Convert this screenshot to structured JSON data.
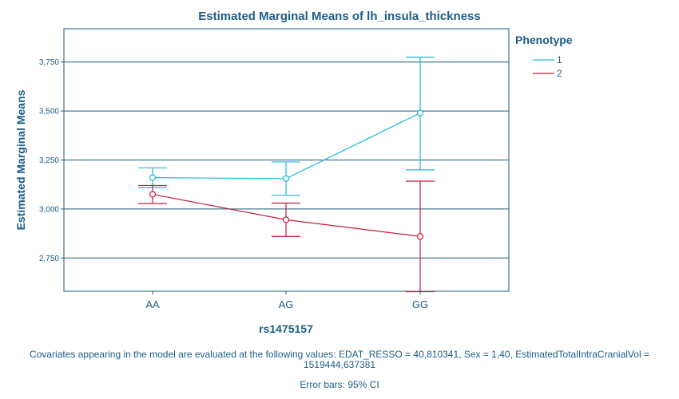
{
  "chart_data": {
    "type": "line",
    "title": "Estimated Marginal Means of lh_insula_thickness",
    "xlabel": "rs1475157",
    "ylabel": "Estimated Marginal Means",
    "categories": [
      "AA",
      "AG",
      "GG"
    ],
    "ylim": [
      2.58,
      3.92
    ],
    "yticks": [
      2.75,
      3.0,
      3.25,
      3.5,
      3.75
    ],
    "ytick_labels": [
      "2,750",
      "3,000",
      "3,250",
      "3,500",
      "3,750"
    ],
    "grid": "horizontal",
    "legend": {
      "title": "Phenotype",
      "placement": "right"
    },
    "series": [
      {
        "name": "1",
        "color": "#1fb8d6",
        "values": [
          3.16,
          3.155,
          3.49
        ],
        "ci_low": [
          3.11,
          3.07,
          3.2
        ],
        "ci_high": [
          3.21,
          3.24,
          3.775
        ]
      },
      {
        "name": "2",
        "color": "#c41e3a",
        "values": [
          3.075,
          2.945,
          2.86
        ],
        "ci_low": [
          3.028,
          2.86,
          2.578
        ],
        "ci_high": [
          3.12,
          3.03,
          3.142
        ]
      }
    ]
  },
  "footnote_covariates": "Covariates appearing in the model are evaluated at the following values: EDAT_RESSO = 40,810341, Sex = 1,40, EstimatedTotalIntraCranialVol =",
  "footnote_covariates_cont": "1519444,637381",
  "footnote_errorbars": "Error bars: 95% CI",
  "colors": {
    "text": "#1c5d86",
    "grid": "#1a5a78"
  }
}
